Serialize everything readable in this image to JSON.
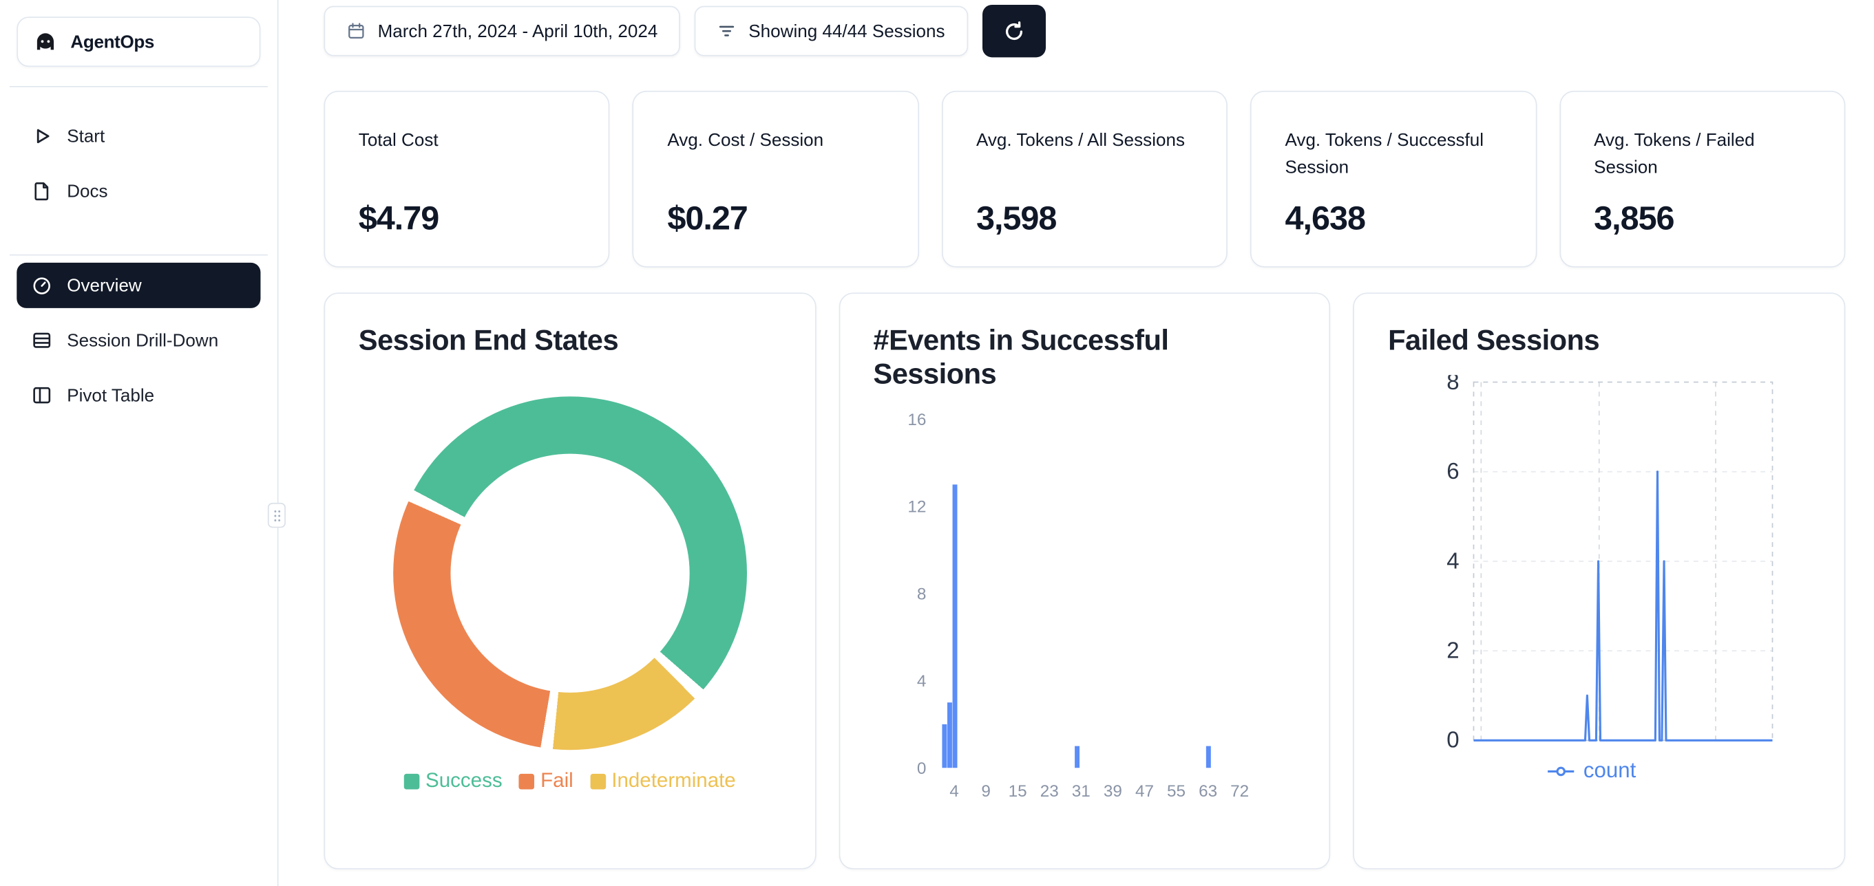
{
  "app": {
    "name": "AgentOps"
  },
  "sidebar": {
    "logo_label": "AgentOps",
    "items": [
      {
        "label": "Start"
      },
      {
        "label": "Docs"
      },
      {
        "label": "Overview",
        "active": true
      },
      {
        "label": "Session Drill-Down"
      },
      {
        "label": "Pivot Table"
      }
    ]
  },
  "topbar": {
    "date_range": "March 27th, 2024 - April 10th, 2024",
    "filter_label": "Showing 44/44 Sessions"
  },
  "stats": [
    {
      "title": "Total Cost",
      "value": "$4.79"
    },
    {
      "title": "Avg. Cost / Session",
      "value": "$0.27"
    },
    {
      "title": "Avg. Tokens / All Sessions",
      "value": "3,598"
    },
    {
      "title": "Avg. Tokens / Successful Session",
      "value": "4,638"
    },
    {
      "title": "Avg. Tokens / Failed Session",
      "value": "3,856"
    }
  ],
  "chart_data": [
    {
      "type": "pie",
      "variant": "donut",
      "title": "Session End States",
      "labels": [
        "Success",
        "Fail",
        "Indeterminate"
      ],
      "values": [
        55.5,
        30,
        14.5
      ],
      "colors": [
        "#4dbd98",
        "#ed8450",
        "#eec153"
      ],
      "draw_order": [
        0,
        2,
        1
      ],
      "start_angle_deg": -62,
      "gap_deg": 4,
      "legend_position": "bottom"
    },
    {
      "type": "bar",
      "title": "#Events in Successful Sessions",
      "xlabel": "",
      "ylabel": "",
      "ylim": [
        0,
        16
      ],
      "y_ticks": [
        0,
        4,
        8,
        12,
        16
      ],
      "x_tick_labels": [
        "4",
        "9",
        "15",
        "23",
        "31",
        "39",
        "47",
        "55",
        "63",
        "72"
      ],
      "bar_color": "#5b8df8",
      "axis_label_color": "#8a94a6",
      "bars": [
        {
          "events": 2,
          "sessions": 2,
          "frac": 0.012
        },
        {
          "events": 3,
          "sessions": 3,
          "frac": 0.028
        },
        {
          "events": 4,
          "sessions": 13,
          "frac": 0.044
        },
        {
          "events": 31,
          "sessions": 1,
          "frac": 0.42
        },
        {
          "events": 68,
          "sessions": 1,
          "frac": 0.824
        }
      ]
    },
    {
      "type": "line",
      "title": "Failed Sessions",
      "ylim": [
        0,
        8
      ],
      "y_ticks": [
        0,
        2,
        4,
        6,
        8
      ],
      "grid": "dashed",
      "series": [
        {
          "name": "count",
          "color": "#4e86ec"
        }
      ],
      "spikes": [
        {
          "frac": 0.38,
          "value": 1
        },
        {
          "frac": 0.417,
          "value": 4
        },
        {
          "frac": 0.615,
          "value": 6
        },
        {
          "frac": 0.637,
          "value": 4
        }
      ],
      "legend_label": "count",
      "axis_label_color": "#2d3748"
    }
  ],
  "colors": {
    "accent_dark": "#111827",
    "border": "#e2e8f0",
    "success": "#4dbd98",
    "fail": "#ed8450",
    "indeterminate": "#eec153",
    "chart_blue": "#4e86ec"
  }
}
